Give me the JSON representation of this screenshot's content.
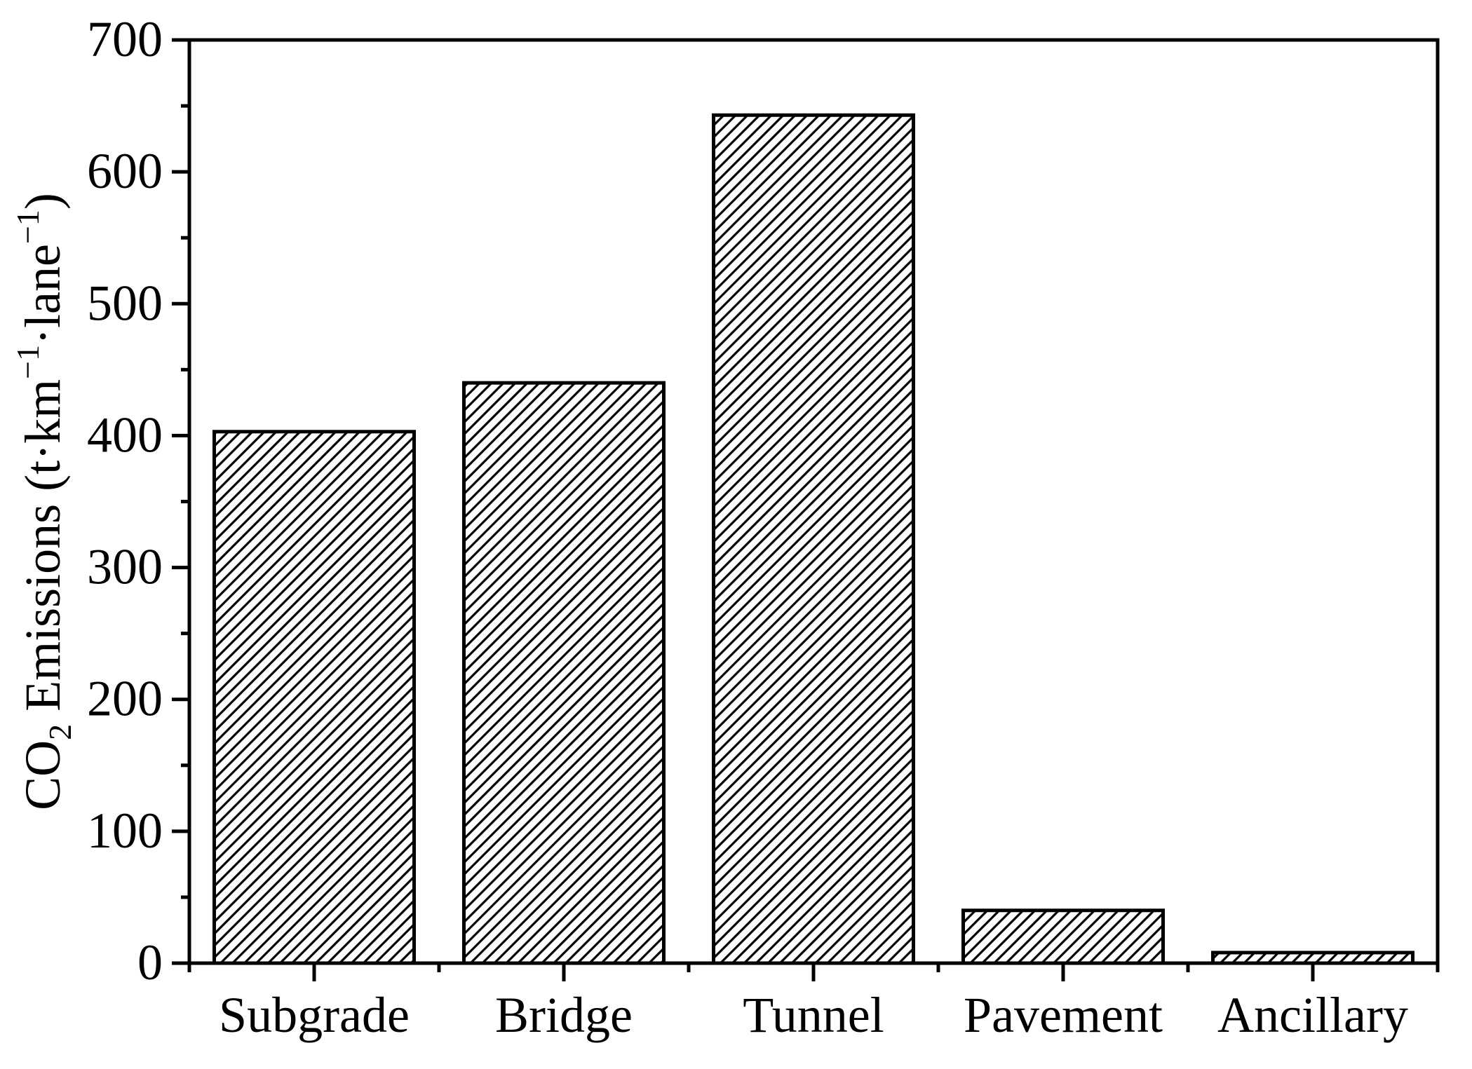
{
  "figure": {
    "background": "#ffffff",
    "ink_color": "#000000"
  },
  "chart_data": {
    "type": "bar",
    "title": "",
    "xlabel": "",
    "ylabel": "CO₂ Emissions (t·km⁻¹·lane⁻¹)",
    "ylabel_rich": [
      {
        "text": "CO",
        "style": "normal"
      },
      {
        "text": "2",
        "style": "sub"
      },
      {
        "text": " Emissions (t·km",
        "style": "normal"
      },
      {
        "text": "−1",
        "style": "sup"
      },
      {
        "text": "·lane",
        "style": "normal"
      },
      {
        "text": "−1",
        "style": "sup"
      },
      {
        "text": ")",
        "style": "normal"
      }
    ],
    "categories": [
      "Subgrade",
      "Bridge",
      "Tunnel",
      "Pavement",
      "Ancillary"
    ],
    "values": [
      403,
      440,
      643,
      40,
      8
    ],
    "ylim": [
      0,
      700
    ],
    "y_major_step": 100,
    "y_minor_step": 50,
    "y_tick_labels": [
      "0",
      "100",
      "200",
      "300",
      "400",
      "500",
      "600",
      "700"
    ],
    "grid": false,
    "legend": null,
    "bar_style": {
      "fill_background": "#ffffff",
      "hatch": "diagonal-forward-slash",
      "hatch_color": "#000000",
      "outline_color": "#000000"
    }
  }
}
